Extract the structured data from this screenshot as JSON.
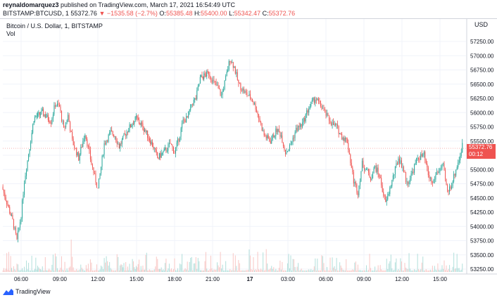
{
  "header": {
    "author": "reynaldomarquez3",
    "published": "published on TradingView.com, March 17, 2021 16:54:49 UTC",
    "symbol": "BITSTAMP:BTCUSD, 1",
    "last": "55372.76",
    "change": "▼ −1535.58 (−2.7%)",
    "o_label": "O:",
    "o_value": "55385.48",
    "h_label": "H:",
    "h_value": "55400.00",
    "l_label": "L:",
    "l_value": "55342.47",
    "c_label": "C:",
    "c_value": "55372.76"
  },
  "legend": {
    "title": "Bitcoin / U.S. Dollar, 1, BITSTAMP",
    "vol": "Vol"
  },
  "price_axis": {
    "currency": "USD"
  },
  "last_price_tag": {
    "price": "55372.76",
    "countdown": "00:12"
  },
  "footer": {
    "brand": "TradingView"
  },
  "colors": {
    "up": "#26a69a",
    "down": "#ef5350",
    "vol_up": "#b2dfdb",
    "vol_down": "#f8c7c5",
    "grid": "#f0f3fa",
    "price_line": "#ef5350"
  },
  "chart_data": {
    "type": "line",
    "title": "Bitcoin / U.S. Dollar, 1, BITSTAMP",
    "ylim": [
      53150,
      57400
    ],
    "y_ticks": [
      "57250.00",
      "57000.00",
      "56750.00",
      "56500.00",
      "56250.00",
      "56000.00",
      "55750.00",
      "55500.00",
      "55250.00",
      "55000.00",
      "54750.00",
      "54500.00",
      "54250.00",
      "54000.00",
      "53750.00",
      "53500.00",
      "53250.00"
    ],
    "x_ticks": [
      "06:00",
      "09:00",
      "12:00",
      "15:00",
      "18:00",
      "21:00",
      "17",
      "03:00",
      "06:00",
      "09:00",
      "12:00",
      "15:00"
    ],
    "x_tick_bold": [
      false,
      false,
      false,
      false,
      false,
      false,
      true,
      false,
      false,
      false,
      false,
      false
    ],
    "series": [
      {
        "values_time": [
          "04:30",
          "05:20",
          "05:40",
          "06:00",
          "06:15",
          "06:40",
          "07:00",
          "07:40",
          "08:20",
          "08:40",
          "09:00",
          "09:20",
          "09:40",
          "10:00",
          "10:30",
          "11:00",
          "11:30",
          "12:00",
          "12:30",
          "13:00",
          "13:20",
          "13:40",
          "14:20",
          "15:00",
          "15:40",
          "16:20",
          "16:40",
          "17:20",
          "17:40",
          "18:00",
          "18:20",
          "18:40",
          "19:00",
          "19:20",
          "19:40",
          "20:00",
          "20:40",
          "21:00",
          "21:20",
          "21:40",
          "22:00",
          "22:20",
          "22:40",
          "23:00",
          "23:30",
          "00:00",
          "00:20",
          "00:40",
          "01:00",
          "01:30",
          "02:00",
          "02:20",
          "02:40",
          "03:00",
          "03:30",
          "04:00",
          "04:20",
          "04:40",
          "05:00",
          "05:30",
          "06:00",
          "06:20",
          "06:40",
          "07:00",
          "07:30",
          "08:00",
          "08:20",
          "08:40",
          "09:00",
          "09:20",
          "09:40",
          "10:00",
          "10:30",
          "11:00",
          "11:30",
          "11:50",
          "12:10",
          "12:30",
          "13:00",
          "13:30",
          "13:50",
          "14:10",
          "14:30",
          "15:00",
          "15:20",
          "15:40",
          "16:00",
          "16:20",
          "16:40",
          "16:55"
        ],
        "values": [
          54700,
          54100,
          53750,
          54200,
          54800,
          55400,
          55900,
          56000,
          55850,
          56150,
          56100,
          55700,
          55950,
          55500,
          55200,
          55650,
          55100,
          54650,
          55450,
          55650,
          55600,
          55400,
          55700,
          55900,
          55700,
          55400,
          55200,
          55350,
          55450,
          55300,
          55550,
          55850,
          55900,
          56150,
          56250,
          56600,
          56700,
          56550,
          56450,
          56300,
          56600,
          56950,
          56800,
          56500,
          56350,
          56250,
          56100,
          55850,
          55600,
          55500,
          55700,
          55600,
          55300,
          55400,
          55700,
          55800,
          56000,
          56150,
          56250,
          56100,
          55900,
          55800,
          55750,
          55600,
          55500,
          54800,
          54600,
          55100,
          55000,
          54850,
          55050,
          54900,
          54400,
          54800,
          55200,
          55050,
          54750,
          54900,
          55200,
          55250,
          54900,
          54750,
          54950,
          55050,
          54600,
          54750,
          55000,
          55250,
          55600,
          55372.76
        ]
      }
    ]
  }
}
